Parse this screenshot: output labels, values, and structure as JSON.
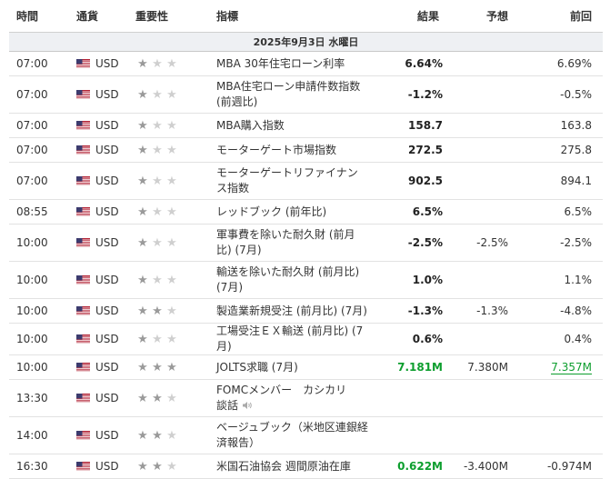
{
  "columns": {
    "time": "時間",
    "currency": "通貨",
    "importance": "重要性",
    "event": "指標",
    "actual": "結果",
    "forecast": "予想",
    "previous": "前回"
  },
  "date_label": "2025年9月3日 水曜日",
  "colors": {
    "green": "#0d9e2e",
    "star_on": "#9a9a9a",
    "star_off": "#cfcfcf"
  },
  "rows": [
    {
      "time": "07:00",
      "currency": "USD",
      "stars": 1,
      "event": "MBA 30年住宅ローン利率",
      "actual": "6.64%",
      "forecast": "",
      "previous": "6.69%",
      "actual_color": "default",
      "previous_color": "default"
    },
    {
      "time": "07:00",
      "currency": "USD",
      "stars": 1,
      "event": "MBA住宅ローン申請件数指数 (前週比)",
      "actual": "-1.2%",
      "forecast": "",
      "previous": "-0.5%",
      "actual_color": "default",
      "previous_color": "default"
    },
    {
      "time": "07:00",
      "currency": "USD",
      "stars": 1,
      "event": "MBA購入指数",
      "actual": "158.7",
      "forecast": "",
      "previous": "163.8",
      "actual_color": "default",
      "previous_color": "default"
    },
    {
      "time": "07:00",
      "currency": "USD",
      "stars": 1,
      "event": "モーターゲート市場指数",
      "actual": "272.5",
      "forecast": "",
      "previous": "275.8",
      "actual_color": "default",
      "previous_color": "default"
    },
    {
      "time": "07:00",
      "currency": "USD",
      "stars": 1,
      "event": "モーターゲートリファイナンス指数",
      "actual": "902.5",
      "forecast": "",
      "previous": "894.1",
      "actual_color": "default",
      "previous_color": "default"
    },
    {
      "time": "08:55",
      "currency": "USD",
      "stars": 1,
      "event": "レッドブック (前年比)",
      "actual": "6.5%",
      "forecast": "",
      "previous": "6.5%",
      "actual_color": "default",
      "previous_color": "default"
    },
    {
      "time": "10:00",
      "currency": "USD",
      "stars": 1,
      "event": "軍事費を除いた耐久財 (前月比) (7月)",
      "actual": "-2.5%",
      "forecast": "-2.5%",
      "previous": "-2.5%",
      "actual_color": "default",
      "previous_color": "default"
    },
    {
      "time": "10:00",
      "currency": "USD",
      "stars": 1,
      "event": "輸送を除いた耐久財 (前月比) (7月)",
      "actual": "1.0%",
      "forecast": "",
      "previous": "1.1%",
      "actual_color": "default",
      "previous_color": "default"
    },
    {
      "time": "10:00",
      "currency": "USD",
      "stars": 2,
      "event": "製造業新規受注 (前月比) (7月)",
      "actual": "-1.3%",
      "forecast": "-1.3%",
      "previous": "-4.8%",
      "actual_color": "default",
      "previous_color": "default"
    },
    {
      "time": "10:00",
      "currency": "USD",
      "stars": 1,
      "event": "工場受注ＥＸ輸送 (前月比) (7月)",
      "actual": "0.6%",
      "forecast": "",
      "previous": "0.4%",
      "actual_color": "default",
      "previous_color": "default"
    },
    {
      "time": "10:00",
      "currency": "USD",
      "stars": 3,
      "event": "JOLTS求職 (7月)",
      "actual": "7.181M",
      "forecast": "7.380M",
      "previous": "7.357M",
      "actual_color": "green",
      "previous_color": "green"
    },
    {
      "time": "13:30",
      "currency": "USD",
      "stars": 2,
      "event": "FOMCメンバー　カシカリ　談話",
      "actual": "",
      "forecast": "",
      "previous": "",
      "actual_color": "default",
      "previous_color": "default",
      "speaker_icon": true
    },
    {
      "time": "14:00",
      "currency": "USD",
      "stars": 2,
      "event": "ベージュブック（米地区連銀経済報告）",
      "actual": "",
      "forecast": "",
      "previous": "",
      "actual_color": "default",
      "previous_color": "default"
    },
    {
      "time": "16:30",
      "currency": "USD",
      "stars": 2,
      "event": "米国石油協会 週間原油在庫",
      "actual": "0.622M",
      "forecast": "-3.400M",
      "previous": "-0.974M",
      "actual_color": "green",
      "previous_color": "default"
    }
  ]
}
